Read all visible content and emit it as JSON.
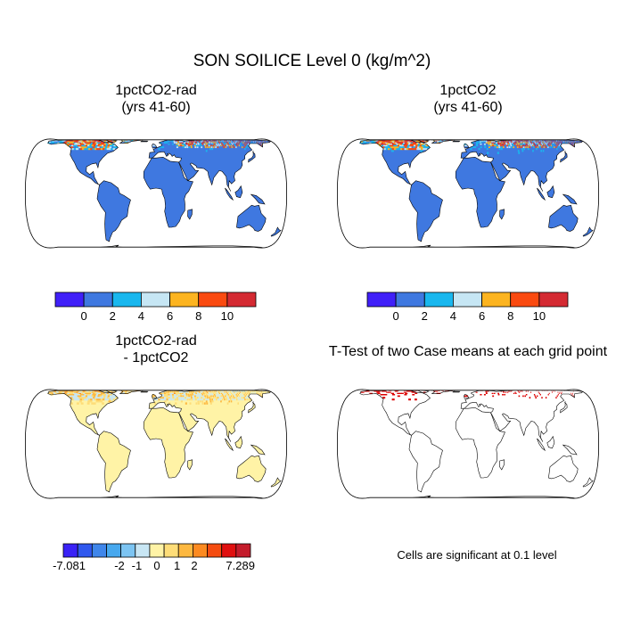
{
  "title": "SON SOILICE Level 0 (kg/m^2)",
  "note": "Cells are significant at 0.1 level",
  "palette": {
    "land": "#3f78e0",
    "ocean": "#ffffff",
    "diff_land": "#fff3a6",
    "sig": "#dd0000",
    "coast": "#000000"
  },
  "chart_data": [
    {
      "type": "heatmap",
      "title_line1": "1pctCO2-rad",
      "title_line2": "(yrs 41-60)",
      "colorbar": {
        "colors": [
          "#4020f8",
          "#3f78e0",
          "#19b7ee",
          "#c6e6f4",
          "#fcb420",
          "#fa4a10",
          "#d42a32"
        ],
        "tick_labels": [
          "0",
          "2",
          "4",
          "6",
          "8",
          "10"
        ]
      }
    },
    {
      "type": "heatmap",
      "title_line1": "1pctCO2",
      "title_line2": "(yrs 41-60)",
      "colorbar": {
        "colors": [
          "#4020f8",
          "#3f78e0",
          "#19b7ee",
          "#c6e6f4",
          "#fcb420",
          "#fa4a10",
          "#d42a32"
        ],
        "tick_labels": [
          "0",
          "2",
          "4",
          "6",
          "8",
          "10"
        ]
      }
    },
    {
      "type": "heatmap",
      "title_line1": "1pctCO2-rad",
      "title_line2": "- 1pctCO2",
      "colorbar": {
        "colors": [
          "#3a22f6",
          "#3058ee",
          "#3f86ea",
          "#47a8ee",
          "#7cc4f2",
          "#c8e6f4",
          "#fff3a6",
          "#fedd78",
          "#fdb840",
          "#fc8a20",
          "#f54c10",
          "#e01010",
          "#c41c2c"
        ],
        "tick_labels": [
          "-7.081",
          "-2",
          "-1",
          "0",
          "1",
          "2",
          "7.289"
        ]
      }
    },
    {
      "type": "heatmap",
      "title_line1": "T-Test of two Case means at each grid point",
      "legend": "Cells are significant at 0.1 level"
    }
  ]
}
